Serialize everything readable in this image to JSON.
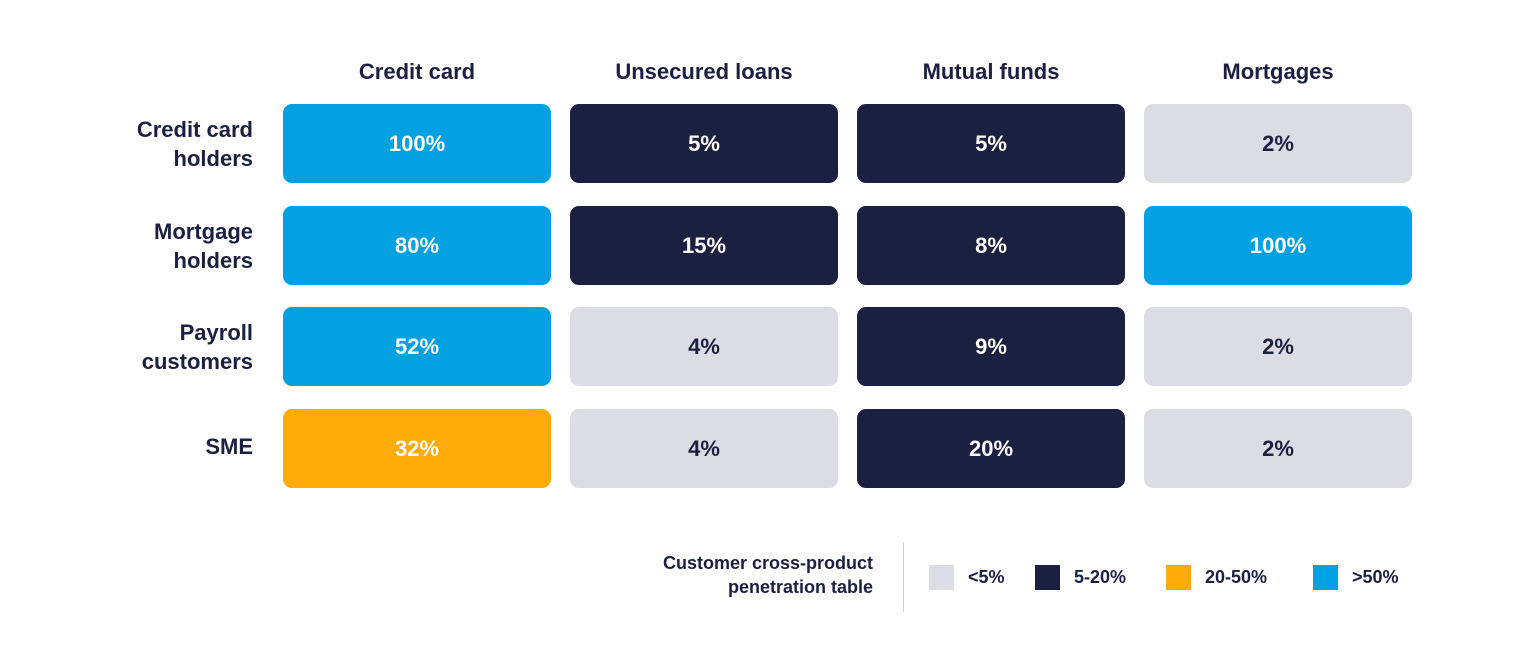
{
  "chart_data": {
    "type": "heatmap",
    "columns": [
      "Credit card",
      "Unsecured loans",
      "Mutual funds",
      "Mortgages"
    ],
    "rows": [
      {
        "label_lines": [
          "Credit card",
          "holders"
        ],
        "values": [
          "100%",
          "5%",
          "5%",
          "2%"
        ],
        "bands": [
          "blue",
          "dark",
          "dark",
          "light"
        ]
      },
      {
        "label_lines": [
          "Mortgage",
          "holders"
        ],
        "values": [
          "80%",
          "15%",
          "8%",
          "100%"
        ],
        "bands": [
          "blue",
          "dark",
          "dark",
          "blue"
        ]
      },
      {
        "label_lines": [
          "Payroll",
          "customers"
        ],
        "values": [
          "52%",
          "4%",
          "9%",
          "2%"
        ],
        "bands": [
          "blue",
          "light",
          "dark",
          "light"
        ]
      },
      {
        "label_lines": [
          "SME"
        ],
        "values": [
          "32%",
          "4%",
          "20%",
          "2%"
        ],
        "bands": [
          "amber",
          "light",
          "dark",
          "light"
        ]
      }
    ],
    "legend": {
      "title_lines": [
        "Customer cross-product",
        "penetration table"
      ],
      "items": [
        {
          "label": "<5%",
          "band": "light",
          "color": "#dcdce4"
        },
        {
          "label": "5-20%",
          "band": "dark",
          "color": "#1b1f40"
        },
        {
          "label": "20-50%",
          "band": "amber",
          "color": "#ffab0a"
        },
        {
          "label": ">50%",
          "band": "blue",
          "color": "#03a1e2"
        }
      ],
      "placement": "bottom-right"
    },
    "colors": {
      "light": "#dcdce4",
      "dark": "#1b1f40",
      "amber": "#ffab0a",
      "blue": "#03a1e2",
      "text": "#1b1f40"
    }
  }
}
